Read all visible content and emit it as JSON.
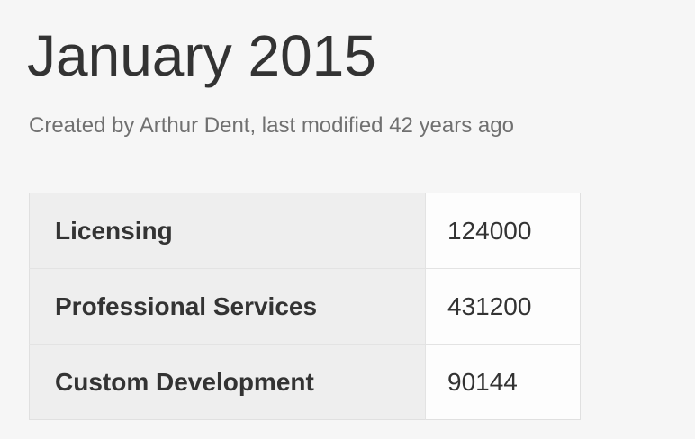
{
  "page": {
    "title": "January 2015",
    "meta": "Created by Arthur Dent, last modified 42 years ago"
  },
  "table": {
    "rows": [
      {
        "label": "Licensing",
        "value": "124000"
      },
      {
        "label": "Professional Services",
        "value": "431200"
      },
      {
        "label": "Custom Development",
        "value": "90144"
      }
    ]
  },
  "colors": {
    "background": "#f6f6f6",
    "header_cell": "#eeeeee",
    "text": "#333333",
    "meta_text": "#707070"
  }
}
